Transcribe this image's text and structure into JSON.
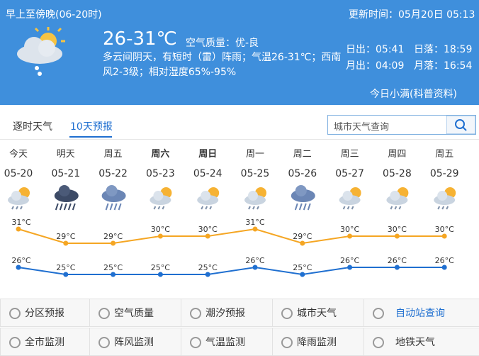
{
  "header": {
    "period": "早上至傍晚(06-20时)",
    "updated": "更新时间：05月20日 05:13",
    "temp": "26-31℃",
    "air": "空气质量：优-良",
    "desc": "多云间阴天，有短时（雷）阵雨；气温26-31℃；西南风2-3级；相对湿度65%-95%",
    "sunrise": "日出：05:41",
    "sunset": "日落：18:59",
    "moonrise": "月出：04:09",
    "moonset": "月落：16:54",
    "link": "今日小满(科普资料)"
  },
  "tabs": [
    "逐时天气",
    "10天预报"
  ],
  "search": {
    "placeholder": "城市天气查询"
  },
  "forecast": {
    "high_color": "#f5a623",
    "low_color": "#1f6fd0",
    "days": [
      {
        "name": "今天",
        "date": "05-20",
        "icon": "showers",
        "high": 31,
        "high_label": "31°C",
        "low": 26,
        "low_label": "26°C"
      },
      {
        "name": "明天",
        "date": "05-21",
        "icon": "heavy-rain",
        "high": 29,
        "high_label": "29°C",
        "low": 25,
        "low_label": "25°C"
      },
      {
        "name": "周五",
        "date": "05-22",
        "icon": "rain",
        "high": 29,
        "high_label": "29°C",
        "low": 25,
        "low_label": "25°C"
      },
      {
        "name": "周六",
        "date": "05-23",
        "icon": "showers",
        "bold": true,
        "high": 30,
        "high_label": "30°C",
        "low": 25,
        "low_label": "25°C"
      },
      {
        "name": "周日",
        "date": "05-24",
        "icon": "showers",
        "bold": true,
        "high": 30,
        "high_label": "30°C",
        "low": 25,
        "low_label": "25°C"
      },
      {
        "name": "周一",
        "date": "05-25",
        "icon": "showers",
        "high": 31,
        "high_label": "31°C",
        "low": 26,
        "low_label": "26°C"
      },
      {
        "name": "周二",
        "date": "05-26",
        "icon": "rain",
        "high": 29,
        "high_label": "29°C",
        "low": 25,
        "low_label": "25°C"
      },
      {
        "name": "周三",
        "date": "05-27",
        "icon": "showers",
        "high": 30,
        "high_label": "30°C",
        "low": 26,
        "low_label": "26°C"
      },
      {
        "name": "周四",
        "date": "05-28",
        "icon": "showers",
        "high": 30,
        "high_label": "30°C",
        "low": 26,
        "low_label": "26°C"
      },
      {
        "name": "周五",
        "date": "05-29",
        "icon": "showers",
        "high": 30,
        "high_label": "30°C",
        "low": 26,
        "low_label": "26°C"
      }
    ]
  },
  "links": [
    "分区预报",
    "空气质量",
    "潮汐预报",
    "城市天气",
    "自动站查询",
    "全市监测",
    "阵风监测",
    "气温监测",
    "降雨监测",
    "地铁天气"
  ]
}
